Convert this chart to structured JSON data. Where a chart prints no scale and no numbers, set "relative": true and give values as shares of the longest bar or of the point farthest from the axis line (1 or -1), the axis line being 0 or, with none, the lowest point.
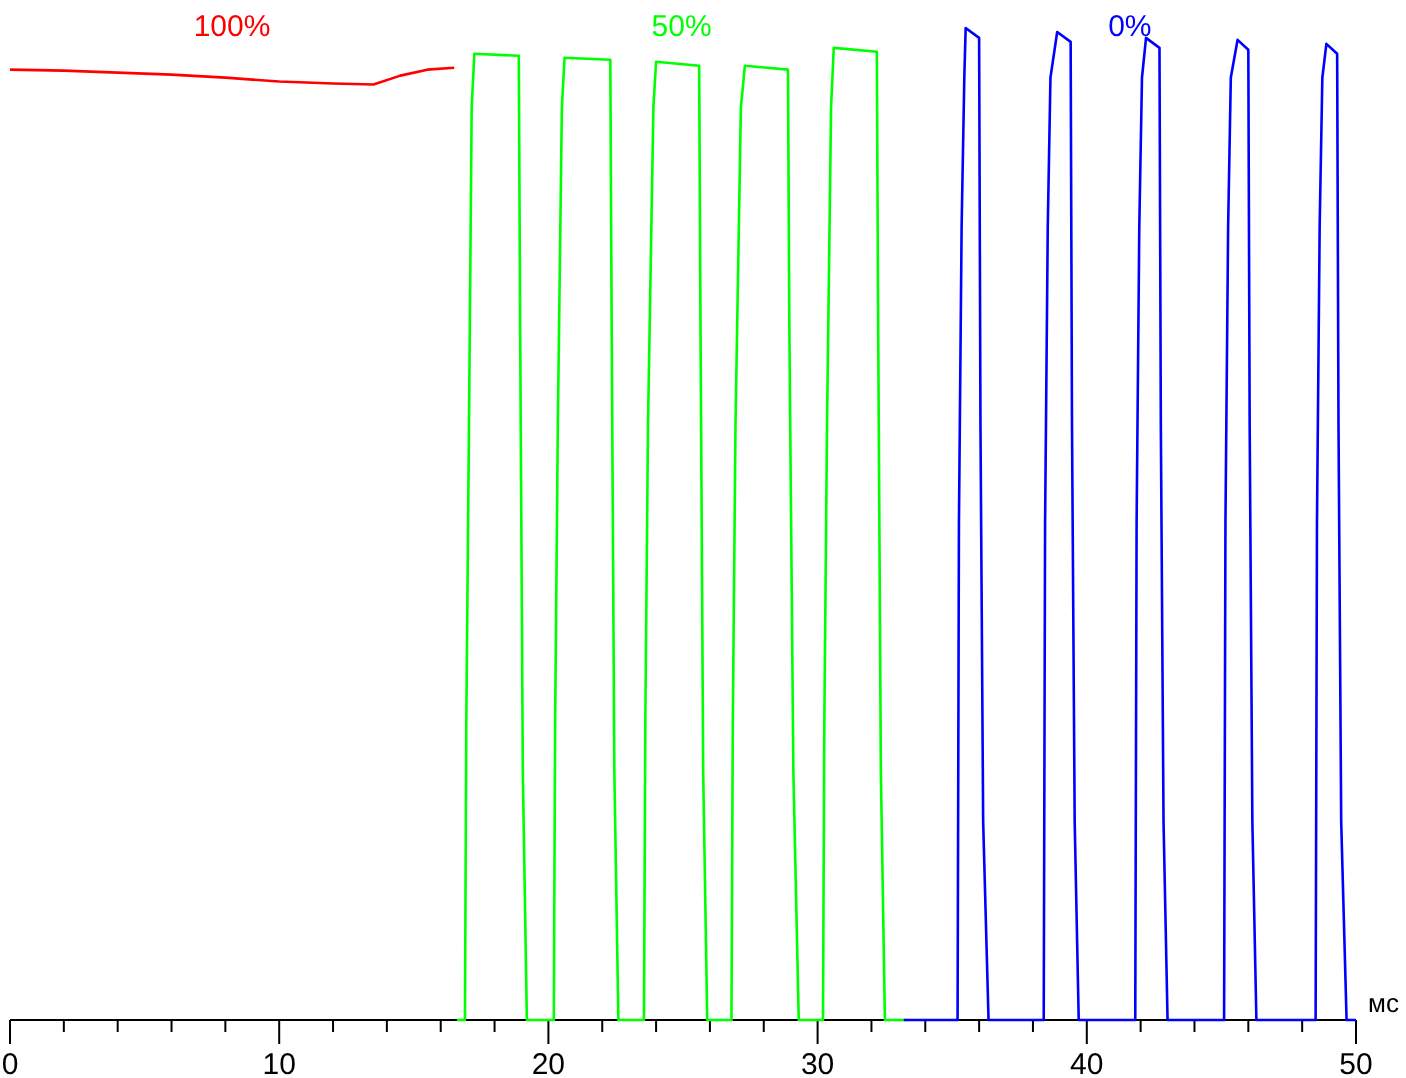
{
  "chart_data": {
    "type": "line",
    "relative": true,
    "xlabel": "мс",
    "xlim": [
      0,
      50
    ],
    "xticks": [
      0,
      {
        "value": 2,
        "label": null
      },
      {
        "value": 4,
        "label": null
      },
      {
        "value": 6,
        "label": null
      },
      {
        "value": 8,
        "label": null
      },
      10,
      {
        "value": 12,
        "label": null
      },
      {
        "value": 14,
        "label": null
      },
      {
        "value": 16,
        "label": null
      },
      {
        "value": 18,
        "label": null
      },
      20,
      {
        "value": 22,
        "label": null
      },
      {
        "value": 24,
        "label": null
      },
      {
        "value": 26,
        "label": null
      },
      {
        "value": 28,
        "label": null
      },
      30,
      {
        "value": 32,
        "label": null
      },
      {
        "value": 34,
        "label": null
      },
      {
        "value": 36,
        "label": null
      },
      {
        "value": 38,
        "label": null
      },
      40,
      {
        "value": 42,
        "label": null
      },
      {
        "value": 44,
        "label": null
      },
      {
        "value": 46,
        "label": null
      },
      {
        "value": 48,
        "label": null
      },
      50
    ],
    "grid": false,
    "legend": false,
    "marker": "none",
    "line_style": "solid",
    "series": [
      {
        "name": "100%",
        "color": "#ff0000",
        "x": [
          0,
          2,
          4,
          6,
          8,
          10,
          12,
          13.5,
          14.5,
          15.5,
          16.5
        ],
        "values": [
          0.958,
          0.957,
          0.955,
          0.953,
          0.95,
          0.946,
          0.944,
          0.943,
          0.952,
          0.958,
          0.96
        ]
      },
      {
        "name": "50%",
        "color": "#00ff00",
        "x": [
          16.6,
          16.9,
          16.95,
          17.05,
          17.15,
          17.25,
          18.9,
          18.95,
          19.05,
          19.2,
          20.2,
          20.25,
          20.35,
          20.5,
          20.6,
          22.3,
          22.35,
          22.45,
          22.6,
          23.55,
          23.6,
          23.7,
          23.9,
          24.0,
          25.6,
          25.65,
          25.75,
          25.9,
          26.8,
          26.85,
          26.95,
          27.15,
          27.3,
          28.9,
          28.95,
          29.1,
          29.3,
          30.2,
          30.25,
          30.35,
          30.5,
          30.6,
          32.2,
          32.25,
          32.35,
          32.5,
          33.3
        ],
        "values": [
          0,
          0,
          0.3,
          0.6,
          0.92,
          0.974,
          0.972,
          0.7,
          0.25,
          0,
          0,
          0.3,
          0.6,
          0.92,
          0.97,
          0.968,
          0.7,
          0.25,
          0,
          0,
          0.3,
          0.6,
          0.92,
          0.966,
          0.962,
          0.7,
          0.25,
          0,
          0,
          0.3,
          0.6,
          0.92,
          0.962,
          0.958,
          0.7,
          0.25,
          0,
          0,
          0.3,
          0.6,
          0.92,
          0.98,
          0.976,
          0.7,
          0.25,
          0,
          0
        ]
      },
      {
        "name": "0%",
        "color": "#0000ff",
        "x": [
          33.2,
          35.2,
          35.25,
          35.35,
          35.45,
          35.5,
          36.0,
          36.05,
          36.15,
          36.35,
          38.4,
          38.45,
          38.55,
          38.65,
          38.9,
          39.4,
          39.45,
          39.55,
          39.7,
          41.8,
          41.85,
          41.95,
          42.05,
          42.2,
          42.7,
          42.75,
          42.85,
          43.0,
          45.1,
          45.15,
          45.25,
          45.35,
          45.6,
          46.0,
          46.05,
          46.15,
          46.3,
          48.5,
          48.55,
          48.65,
          48.75,
          48.9,
          49.3,
          49.35,
          49.45,
          49.65,
          50
        ],
        "values": [
          0,
          0,
          0.5,
          0.8,
          0.95,
          1,
          0.99,
          0.6,
          0.2,
          0,
          0,
          0.5,
          0.8,
          0.95,
          0.996,
          0.986,
          0.6,
          0.2,
          0,
          0,
          0.5,
          0.8,
          0.95,
          0.99,
          0.98,
          0.6,
          0.2,
          0,
          0,
          0.5,
          0.8,
          0.95,
          0.988,
          0.978,
          0.6,
          0.2,
          0,
          0,
          0.5,
          0.8,
          0.95,
          0.984,
          0.974,
          0.6,
          0.2,
          0,
          0
        ]
      }
    ]
  }
}
